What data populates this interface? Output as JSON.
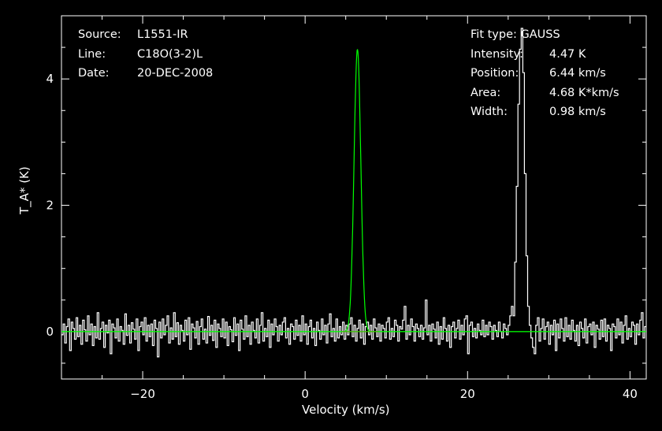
{
  "header_left": {
    "source_label": "Source:",
    "source_value": "L1551-IR",
    "line_label": "Line:",
    "line_value": "C18O(3-2)L",
    "date_label": "Date:",
    "date_value": "20-DEC-2008"
  },
  "header_right": {
    "fit_type": "Fit type: GAUSS",
    "intensity_label": "Intensity:",
    "intensity_value": "4.47 K",
    "position_label": "Position:",
    "position_value": "6.44 km/s",
    "area_label": "Area:",
    "area_value": "4.68 K*km/s",
    "width_label": "Width:",
    "width_value": "0.98 km/s"
  },
  "colors": {
    "spectrum": "#ffffff",
    "fit": "#00ff00",
    "baseline": "#ff0000",
    "frame": "#ffffff"
  },
  "chart_data": {
    "type": "line",
    "xlabel": "Velocity (km/s)",
    "ylabel": "T_A* (K)",
    "xlim": [
      -30,
      42
    ],
    "ylim": [
      -0.75,
      5.0
    ],
    "x_ticks": [
      -20,
      0,
      20,
      40
    ],
    "y_ticks": [
      0,
      2,
      4
    ],
    "fit": {
      "type": "GAUSS",
      "intensity": 4.47,
      "position": 6.44,
      "width": 0.98
    },
    "baseline": {
      "x_range": [
        4.5,
        9
      ],
      "value": 0
    },
    "series": [
      {
        "x_start": -30,
        "x_step": 0.2,
        "values": [
          -0.05,
          0.12,
          -0.18,
          0.08,
          0.2,
          -0.3,
          0.15,
          0.05,
          -0.12,
          0.22,
          -0.08,
          0.1,
          -0.2,
          0.18,
          0.03,
          -0.15,
          0.25,
          -0.05,
          0.12,
          -0.22,
          0.08,
          -0.1,
          0.3,
          -0.12,
          0.05,
          0.15,
          -0.25,
          0.1,
          -0.02,
          0.18,
          -0.35,
          0.12,
          0.06,
          -0.1,
          0.2,
          -0.15,
          0.08,
          0.02,
          -0.2,
          0.28,
          -0.06,
          0.1,
          -0.18,
          0.14,
          0.04,
          -0.12,
          0.2,
          -0.3,
          0.08,
          0.15,
          -0.05,
          0.22,
          -0.15,
          0.1,
          -0.08,
          0.12,
          -0.22,
          0.18,
          0.05,
          -0.4,
          0.15,
          -0.1,
          0.2,
          -0.05,
          0.1,
          0.25,
          -0.18,
          0.06,
          -0.12,
          0.3,
          -0.08,
          0.14,
          -0.2,
          0.1,
          0.02,
          -0.15,
          0.18,
          -0.05,
          0.22,
          -0.28,
          0.12,
          0.06,
          -0.1,
          0.16,
          -0.2,
          0.08,
          0.2,
          -0.12,
          0.04,
          -0.18,
          0.24,
          -0.06,
          0.1,
          -0.14,
          0.18,
          -0.25,
          0.12,
          0.05,
          -0.08,
          0.2,
          -0.1,
          0.15,
          -0.22,
          0.08,
          0.03,
          -0.16,
          0.22,
          -0.06,
          0.12,
          -0.3,
          0.18,
          0.04,
          -0.12,
          0.25,
          -0.08,
          0.1,
          -0.2,
          0.15,
          0.02,
          -0.1,
          0.2,
          -0.18,
          0.1,
          0.3,
          -0.15,
          0.05,
          -0.08,
          0.18,
          -0.25,
          0.12,
          -0.05,
          0.2,
          0.08,
          -0.15,
          0.1,
          -0.05,
          0.15,
          0.22,
          -0.1,
          0.05,
          -0.2,
          0.12,
          0.08,
          -0.12,
          0.18,
          -0.06,
          0.1,
          -0.15,
          0.25,
          -0.05,
          0.12,
          -0.2,
          0.08,
          0.18,
          -0.1,
          0.05,
          -0.22,
          0.15,
          0.02,
          -0.12,
          0.2,
          -0.05,
          0.1,
          -0.18,
          0.12,
          0.28,
          -0.08,
          0.05,
          -0.15,
          0.2,
          -0.1,
          0.08,
          -0.05,
          0.15,
          -0.12,
          0.1,
          -0.05,
          0.12,
          0.22,
          -0.08,
          0.1,
          -0.15,
          0.05,
          0.18,
          -0.1,
          0.12,
          -0.2,
          0.08,
          0.15,
          -0.05,
          0.1,
          -0.12,
          0.2,
          0.06,
          -0.08,
          0.12,
          -0.15,
          0.1,
          0.05,
          -0.1,
          0.15,
          0.22,
          -0.12,
          0.05,
          -0.08,
          0.18,
          0.1,
          -0.15,
          0.08,
          0.04,
          0.18,
          0.4,
          -0.12,
          0.1,
          -0.05,
          0.2,
          0.08,
          -0.15,
          0.12,
          0.05,
          -0.08,
          0.1,
          -0.12,
          0.06,
          0.5,
          -0.05,
          0.1,
          -0.15,
          0.12,
          0.04,
          -0.1,
          0.15,
          -0.2,
          0.08,
          -0.12,
          0.22,
          0.05,
          -0.15,
          0.1,
          -0.25,
          0.08,
          0.15,
          -0.1,
          0.05,
          0.18,
          -0.12,
          0.1,
          -0.05,
          0.2,
          0.25,
          -0.35,
          0.1,
          0.15,
          -0.08,
          0.05,
          -0.1,
          0.12,
          0.02,
          -0.05,
          0.18,
          -0.08,
          0.1,
          -0.05,
          0.15,
          0.08,
          -0.12,
          0.1,
          0.02,
          -0.08,
          0.15,
          0.0,
          -0.1,
          0.12,
          0.05,
          -0.05,
          0.1,
          0.25,
          0.4,
          0.25,
          1.1,
          2.3,
          3.6,
          4.47,
          4.8,
          4.1,
          2.5,
          1.2,
          0.4,
          0.1,
          -0.1,
          -0.25,
          -0.35,
          0.1,
          0.22,
          -0.15,
          0.05,
          0.2,
          -0.12,
          0.08,
          0.15,
          -0.2,
          0.1,
          -0.05,
          0.18,
          -0.3,
          0.12,
          -0.1,
          0.2,
          0.05,
          -0.15,
          0.22,
          -0.08,
          0.1,
          -0.12,
          0.18,
          0.02,
          -0.15,
          0.1,
          -0.22,
          0.15,
          0.05,
          -0.1,
          0.2,
          -0.18,
          0.08,
          0.12,
          -0.05,
          0.15,
          -0.25,
          0.1,
          0.04,
          -0.12,
          0.18,
          -0.08,
          0.2,
          -0.15,
          0.1,
          0.05,
          -0.3,
          0.12,
          0.08,
          -0.1,
          0.2,
          -0.05,
          0.15,
          -0.18,
          0.1,
          0.25,
          -0.12,
          0.05,
          -0.08,
          0.15,
          0.1,
          -0.2,
          0.12,
          -0.05,
          0.18,
          0.3,
          -0.1,
          0.08,
          -0.15,
          0.12,
          0.05,
          -0.1,
          0.2,
          -0.12,
          0.1,
          0.45,
          -0.08,
          0.15,
          -0.2,
          0.1,
          0.05,
          -0.15,
          0.22,
          -0.1,
          0.08,
          -0.05,
          0.18,
          -0.12,
          0.1,
          -0.25,
          0.15,
          0.05,
          -0.1,
          0.2,
          -0.08,
          0.12,
          -0.15,
          0.1,
          0.3,
          -0.12,
          0.05,
          -0.2,
          0.15,
          0.08,
          -0.1,
          0.18,
          -0.05,
          0.12,
          -0.15,
          0.1,
          0.05,
          -0.12,
          0.2,
          -0.08,
          0.15,
          -0.1,
          0.25,
          -0.18,
          0.12,
          0.05,
          -0.1,
          0.18,
          -0.22,
          0.1,
          0.05,
          -0.12,
          0.15,
          -0.08,
          0.2,
          -0.15,
          0.1,
          0.08,
          -0.1,
          0.22,
          -0.12,
          0.15,
          -0.05,
          0.1,
          -0.2,
          0.18,
          0.05,
          -0.3,
          0.12,
          0.1,
          -0.15,
          0.08,
          0.22,
          -0.1,
          0.15,
          -0.05,
          0.2,
          -0.12,
          0.1,
          -0.25,
          0.18,
          0.05,
          -0.1,
          0.15,
          0.25,
          -0.2,
          0.1,
          -0.05,
          0.18,
          -0.15,
          0.08,
          0.12,
          -0.1,
          0.2,
          -0.45,
          0.15,
          0.05,
          -0.12,
          0.1,
          0.22,
          -0.08,
          0.15,
          -0.2,
          0.1,
          0.05,
          -0.15,
          0.18,
          -0.1,
          0.12,
          -0.05,
          0.2,
          -0.12,
          0.08,
          0.15,
          -0.25,
          0.1,
          0.18,
          -0.08,
          0.12,
          -0.15,
          0.05,
          0.22,
          -0.1,
          0.15,
          -0.05,
          0.3,
          -0.2
        ]
      }
    ]
  }
}
